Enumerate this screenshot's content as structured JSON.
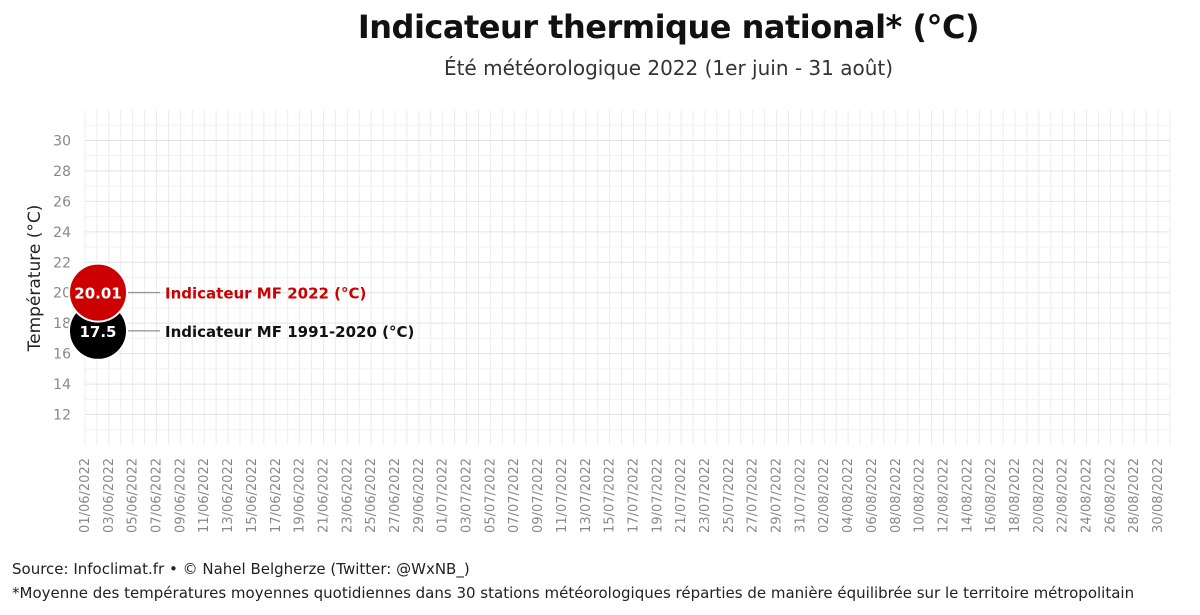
{
  "chart_data": {
    "type": "line",
    "title": "Indicateur thermique national* (°C)",
    "subtitle": "Été météorologique 2022 (1er juin - 31 août)",
    "xlabel": "",
    "ylabel": "Température (°C)",
    "x_tick_labels": [
      "01/06/2022",
      "03/06/2022",
      "05/06/2022",
      "07/06/2022",
      "09/06/2022",
      "11/06/2022",
      "13/06/2022",
      "15/06/2022",
      "17/06/2022",
      "19/06/2022",
      "21/06/2022",
      "23/06/2022",
      "25/06/2022",
      "27/06/2022",
      "29/06/2022",
      "01/07/2022",
      "03/07/2022",
      "05/07/2022",
      "07/07/2022",
      "09/07/2022",
      "11/07/2022",
      "13/07/2022",
      "15/07/2022",
      "17/07/2022",
      "19/07/2022",
      "21/07/2022",
      "23/07/2022",
      "25/07/2022",
      "27/07/2022",
      "29/07/2022",
      "31/07/2022",
      "02/08/2022",
      "04/08/2022",
      "06/08/2022",
      "08/08/2022",
      "10/08/2022",
      "12/08/2022",
      "14/08/2022",
      "16/08/2022",
      "18/08/2022",
      "20/08/2022",
      "22/08/2022",
      "24/08/2022",
      "26/08/2022",
      "28/08/2022",
      "30/08/2022"
    ],
    "y_ticks": [
      12,
      14,
      16,
      18,
      20,
      22,
      24,
      26,
      28,
      30
    ],
    "ylim": [
      10,
      32
    ],
    "grid": true,
    "series": [
      {
        "name": "Indicateur MF 2022 (°C)",
        "color": "#cc0000",
        "points": [
          {
            "x": "01/06/2022",
            "y": 20.01
          }
        ],
        "point_label": "20.01"
      },
      {
        "name": "Indicateur MF 1991-2020 (°C)",
        "color": "#000000",
        "points": [
          {
            "x": "01/06/2022",
            "y": 17.5
          }
        ],
        "point_label": "17.5"
      }
    ]
  },
  "footer": {
    "source": "Source: Infoclimat.fr • © Nahel Belgherze (Twitter: @WxNB_)",
    "note": "*Moyenne des températures moyennes quotidiennes dans 30 stations météorologiques réparties de manière équilibrée sur le territoire métropolitain"
  }
}
